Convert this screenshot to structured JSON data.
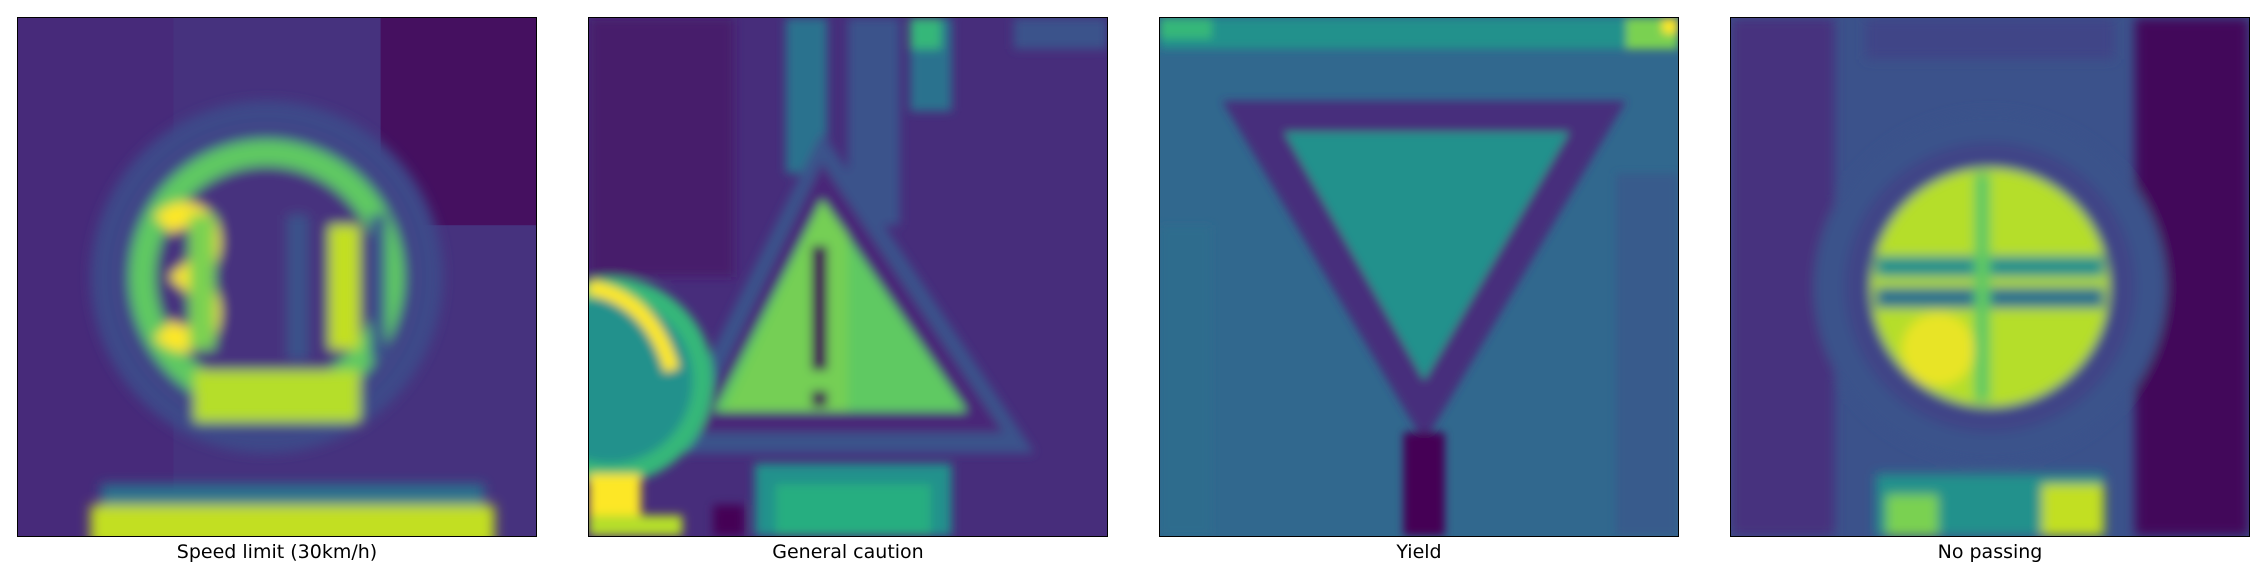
{
  "panels": [
    {
      "label": "Speed limit (30km/h)",
      "sign": "speed-limit-30"
    },
    {
      "label": "General caution",
      "sign": "general-caution"
    },
    {
      "label": "Yield",
      "sign": "yield"
    },
    {
      "label": "No passing",
      "sign": "no-passing"
    }
  ],
  "colors": {
    "colormap": "viridis",
    "dark": "#440154",
    "purple": "#472d7b",
    "blue": "#3b528b",
    "teal": "#2c728e",
    "green": "#21918c",
    "mint": "#28ae80",
    "lime": "#5ec962",
    "yellowgreen": "#addc30",
    "yellow": "#fde725"
  }
}
